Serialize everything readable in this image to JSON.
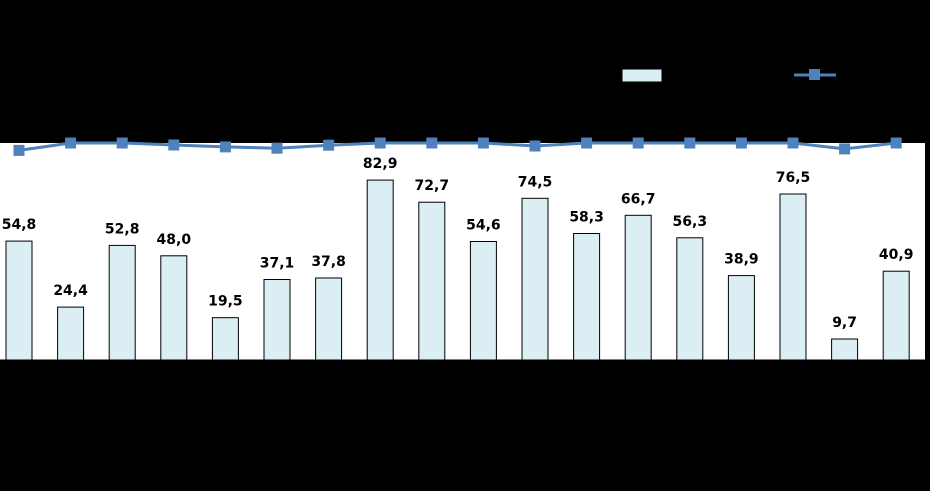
{
  "chart_data": {
    "type": "bar",
    "categories": [
      "",
      "",
      "",
      "",
      "",
      "",
      "",
      "",
      "",
      "",
      "",
      "",
      "",
      "",
      "",
      "",
      "",
      ""
    ],
    "series": [
      {
        "type": "bar",
        "values": [
          54.8,
          24.4,
          52.8,
          48.0,
          19.5,
          37.1,
          37.8,
          82.9,
          72.7,
          54.6,
          74.5,
          58.3,
          66.7,
          56.3,
          38.9,
          76.5,
          9.7,
          40.9
        ],
        "value_labels": [
          "54,8",
          "24,4",
          "52,8",
          "48,0",
          "19,5",
          "37,1",
          "37,8",
          "82,9",
          "72,7",
          "54,6",
          "74,5",
          "58,3",
          "66,7",
          "56,3",
          "38,9",
          "76,5",
          "9,7",
          "40,9"
        ],
        "color": "#DAEEF3",
        "edge_color": "#000000"
      },
      {
        "type": "line",
        "values": [
          96.6,
          100,
          100,
          99.1,
          98.2,
          97.6,
          99.0,
          100,
          100,
          100,
          98.6,
          100,
          100,
          100,
          100,
          100,
          97.3,
          100
        ],
        "color": "#4F81BD",
        "marker": "square"
      }
    ],
    "ylim": [
      0,
      100
    ],
    "legend": "top-right",
    "grid": false
  }
}
